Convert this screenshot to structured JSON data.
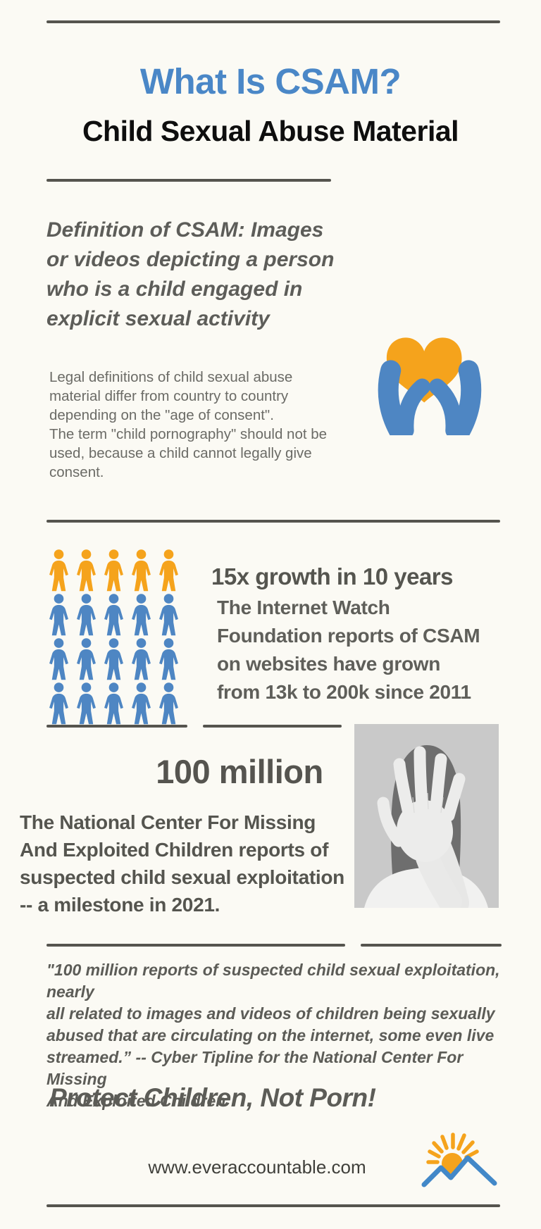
{
  "page": {
    "title": "What Is CSAM?",
    "subtitle": "Child Sexual Abuse Material"
  },
  "definition": {
    "lines": [
      "Definition of CSAM: Images",
      "or videos depicting a person",
      "who is a child engaged in",
      "explicit sexual activity"
    ]
  },
  "legal": {
    "lines": [
      "Legal definitions of child sexual  abuse",
      "material differ from country to country",
      "depending on the \"age of consent\".",
      "The term \"child pornography\" should not be",
      "used, because a child cannot legally give",
      "consent."
    ]
  },
  "growth": {
    "heading": "15x growth in 10 years",
    "lines": [
      "The Internet Watch",
      "Foundation reports of CSAM",
      "on websites have grown",
      "from 13k to 200k since 2011"
    ],
    "pictograph": {
      "rows": 4,
      "cols": 5,
      "row_colors": [
        "#F5A31C",
        "#4E86C3",
        "#4E86C3",
        "#4E86C3"
      ]
    }
  },
  "milestone": {
    "big_number": "100 million",
    "lines": [
      "The National Center For Missing",
      "And Exploited Children reports of",
      "suspected child sexual exploitation",
      "-- a milestone in 2021."
    ]
  },
  "quote": {
    "lines": [
      "\"100 million reports of suspected child sexual exploitation, nearly",
      "all related to images and videos of children being sexually",
      "abused that are circulating on the internet, some even live",
      "streamed.”  -- Cyber Tipline for the National Center For Missing",
      "And Exploited Children"
    ]
  },
  "slogan": "Protect Children, Not Porn!",
  "footer": {
    "url": "www.everaccountable.com"
  },
  "colors": {
    "background": "#FBFAF4",
    "title_blue": "#4A87C7",
    "heading_black": "#0E0E0E",
    "body_gray": "#5C5C57",
    "line_gray": "#55544E",
    "orange": "#F5A31C",
    "icon_blue": "#4E86C3",
    "logo_blue": "#4288C8"
  },
  "icons": {
    "hands_heart": "hands-holding-heart-icon",
    "pictograph_person": "person-icon",
    "logo": "sun-over-mountains-logo",
    "photo": "grayscale-photo-woman-stop-hand"
  }
}
